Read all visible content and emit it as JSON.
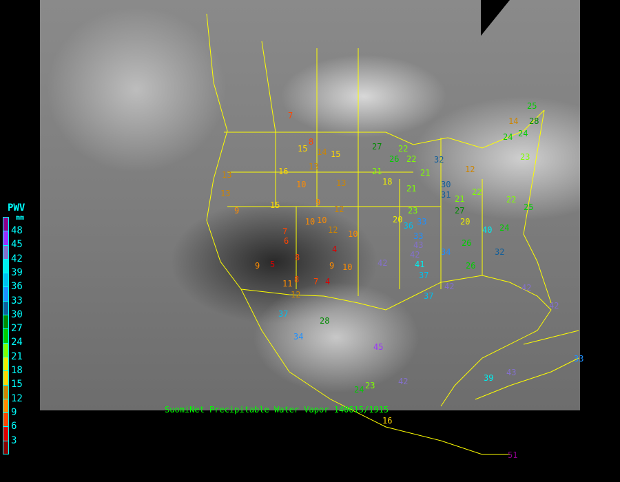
{
  "caption": "SuomiNet Precipitable Water Vapor 140615/1915",
  "legend": {
    "title": "PWV",
    "unit": "mm",
    "ticks": [
      "48",
      "45",
      "42",
      "39",
      "36",
      "33",
      "30",
      "27",
      "24",
      "21",
      "18",
      "15",
      "12",
      "9",
      "6",
      "3"
    ],
    "colors": [
      "#8b008b",
      "#9b30ff",
      "#8470cc",
      "#00eeee",
      "#00bfef",
      "#1e90ff",
      "#105e9a",
      "#008b00",
      "#00cd00",
      "#7fff00",
      "#eeee00",
      "#ffd700",
      "#cd8500",
      "#ff8c00",
      "#ff4500",
      "#dd0000",
      "#8b0000"
    ]
  },
  "map": {
    "boundary_color": "#ffff00",
    "background": "grayscale visible satellite imagery"
  },
  "stations": [
    "7",
    "15",
    "8",
    "14",
    "15",
    "13",
    "16",
    "13",
    "9",
    "12",
    "10",
    "15",
    "13",
    "10",
    "9",
    "8",
    "7",
    "10",
    "12",
    "10",
    "4",
    "9",
    "10",
    "7",
    "4",
    "6",
    "8",
    "5",
    "11",
    "9",
    "12",
    "27",
    "22",
    "22",
    "21",
    "26",
    "21",
    "18",
    "21",
    "20",
    "33",
    "32",
    "30",
    "23",
    "21",
    "22",
    "27",
    "24",
    "33",
    "31",
    "20",
    "36",
    "42",
    "41",
    "37",
    "37",
    "42",
    "34",
    "40",
    "26",
    "26",
    "43",
    "42",
    "32",
    "24",
    "25",
    "24",
    "23",
    "22",
    "28",
    "25",
    "42",
    "42",
    "45",
    "37",
    "34",
    "28",
    "24",
    "23",
    "42",
    "39",
    "43",
    "51",
    "33",
    "12",
    "14",
    "16",
    "13"
  ]
}
